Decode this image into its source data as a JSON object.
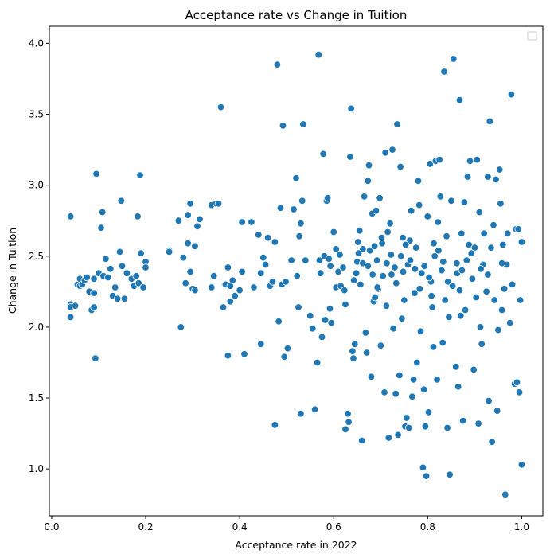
{
  "chart_data": {
    "type": "scatter",
    "title": "Acceptance rate vs Change in Tuition",
    "xlabel": "Acceptance rate in 2022",
    "ylabel": "Change in Tuition",
    "xlim": [
      -0.005,
      1.045
    ],
    "ylim": [
      0.67,
      4.12
    ],
    "xticks": [
      0.0,
      0.2,
      0.4,
      0.6,
      0.8,
      1.0
    ],
    "xtick_labels": [
      "0.0",
      "0.2",
      "0.4",
      "0.6",
      "0.8",
      "1.0"
    ],
    "yticks": [
      1.0,
      1.5,
      2.0,
      2.5,
      3.0,
      3.5,
      4.0
    ],
    "ytick_labels": [
      "1.0",
      "1.5",
      "2.0",
      "2.5",
      "3.0",
      "3.5",
      "4.0"
    ],
    "grid": false,
    "legend": "top-right, empty",
    "marker_color": "#1f77b4",
    "points": [
      [
        0.04,
        2.78
      ],
      [
        0.04,
        2.16
      ],
      [
        0.04,
        2.14
      ],
      [
        0.04,
        2.07
      ],
      [
        0.05,
        2.15
      ],
      [
        0.055,
        2.3
      ],
      [
        0.06,
        2.34
      ],
      [
        0.06,
        2.29
      ],
      [
        0.065,
        2.3
      ],
      [
        0.07,
        2.33
      ],
      [
        0.075,
        2.35
      ],
      [
        0.08,
        2.25
      ],
      [
        0.085,
        2.12
      ],
      [
        0.09,
        2.24
      ],
      [
        0.09,
        2.34
      ],
      [
        0.09,
        2.14
      ],
      [
        0.093,
        1.78
      ],
      [
        0.095,
        3.08
      ],
      [
        0.1,
        2.38
      ],
      [
        0.105,
        2.7
      ],
      [
        0.108,
        2.81
      ],
      [
        0.11,
        2.36
      ],
      [
        0.115,
        2.48
      ],
      [
        0.12,
        2.35
      ],
      [
        0.125,
        2.41
      ],
      [
        0.13,
        2.22
      ],
      [
        0.135,
        2.28
      ],
      [
        0.14,
        2.2
      ],
      [
        0.145,
        2.53
      ],
      [
        0.148,
        2.89
      ],
      [
        0.15,
        2.43
      ],
      [
        0.155,
        2.2
      ],
      [
        0.16,
        2.38
      ],
      [
        0.17,
        2.34
      ],
      [
        0.175,
        2.29
      ],
      [
        0.18,
        2.36
      ],
      [
        0.183,
        2.78
      ],
      [
        0.185,
        2.31
      ],
      [
        0.188,
        3.07
      ],
      [
        0.19,
        2.52
      ],
      [
        0.195,
        2.28
      ],
      [
        0.2,
        2.46
      ],
      [
        0.2,
        2.42
      ],
      [
        0.25,
        2.54
      ],
      [
        0.25,
        2.53
      ],
      [
        0.27,
        2.75
      ],
      [
        0.275,
        2.0
      ],
      [
        0.28,
        2.49
      ],
      [
        0.285,
        2.31
      ],
      [
        0.29,
        2.59
      ],
      [
        0.29,
        2.79
      ],
      [
        0.295,
        2.87
      ],
      [
        0.295,
        2.39
      ],
      [
        0.3,
        2.27
      ],
      [
        0.305,
        2.26
      ],
      [
        0.305,
        2.57
      ],
      [
        0.31,
        2.71
      ],
      [
        0.315,
        2.76
      ],
      [
        0.34,
        2.86
      ],
      [
        0.34,
        2.28
      ],
      [
        0.345,
        2.36
      ],
      [
        0.35,
        2.87
      ],
      [
        0.355,
        2.87
      ],
      [
        0.36,
        3.55
      ],
      [
        0.365,
        2.14
      ],
      [
        0.37,
        2.3
      ],
      [
        0.375,
        1.8
      ],
      [
        0.375,
        2.42
      ],
      [
        0.38,
        2.29
      ],
      [
        0.38,
        2.18
      ],
      [
        0.385,
        2.33
      ],
      [
        0.39,
        2.22
      ],
      [
        0.4,
        2.26
      ],
      [
        0.405,
        2.74
      ],
      [
        0.405,
        2.39
      ],
      [
        0.41,
        1.81
      ],
      [
        0.425,
        2.74
      ],
      [
        0.43,
        2.28
      ],
      [
        0.44,
        2.65
      ],
      [
        0.445,
        2.38
      ],
      [
        0.445,
        1.88
      ],
      [
        0.45,
        2.49
      ],
      [
        0.455,
        2.44
      ],
      [
        0.46,
        2.63
      ],
      [
        0.465,
        2.29
      ],
      [
        0.47,
        2.32
      ],
      [
        0.475,
        2.6
      ],
      [
        0.475,
        1.31
      ],
      [
        0.48,
        3.85
      ],
      [
        0.483,
        2.04
      ],
      [
        0.487,
        2.84
      ],
      [
        0.49,
        2.3
      ],
      [
        0.492,
        3.42
      ],
      [
        0.495,
        1.79
      ],
      [
        0.498,
        2.32
      ],
      [
        0.502,
        1.85
      ],
      [
        0.51,
        2.47
      ],
      [
        0.515,
        2.83
      ],
      [
        0.52,
        3.05
      ],
      [
        0.522,
        2.36
      ],
      [
        0.525,
        2.14
      ],
      [
        0.527,
        2.64
      ],
      [
        0.53,
        2.73
      ],
      [
        0.53,
        1.39
      ],
      [
        0.533,
        2.89
      ],
      [
        0.535,
        3.43
      ],
      [
        0.54,
        2.47
      ],
      [
        0.55,
        2.08
      ],
      [
        0.555,
        1.99
      ],
      [
        0.56,
        1.42
      ],
      [
        0.565,
        1.75
      ],
      [
        0.568,
        3.92
      ],
      [
        0.57,
        2.47
      ],
      [
        0.572,
        2.38
      ],
      [
        0.575,
        1.93
      ],
      [
        0.578,
        3.22
      ],
      [
        0.58,
        2.5
      ],
      [
        0.582,
        2.05
      ],
      [
        0.585,
        2.89
      ],
      [
        0.587,
        2.91
      ],
      [
        0.59,
        2.48
      ],
      [
        0.592,
        2.13
      ],
      [
        0.595,
        2.03
      ],
      [
        0.6,
        2.67
      ],
      [
        0.605,
        2.55
      ],
      [
        0.605,
        2.28
      ],
      [
        0.61,
        2.39
      ],
      [
        0.615,
        2.29
      ],
      [
        0.62,
        2.42
      ],
      [
        0.625,
        2.16
      ],
      [
        0.625,
        1.28
      ],
      [
        0.63,
        1.39
      ],
      [
        0.632,
        1.33
      ],
      [
        0.635,
        3.2
      ],
      [
        0.637,
        3.54
      ],
      [
        0.64,
        1.83
      ],
      [
        0.642,
        1.78
      ],
      [
        0.645,
        1.88
      ],
      [
        0.648,
        2.38
      ],
      [
        0.65,
        2.46
      ],
      [
        0.652,
        2.6
      ],
      [
        0.655,
        2.68
      ],
      [
        0.657,
        2.3
      ],
      [
        0.66,
        1.2
      ],
      [
        0.662,
        2.45
      ],
      [
        0.665,
        2.92
      ],
      [
        0.668,
        1.96
      ],
      [
        0.67,
        1.82
      ],
      [
        0.673,
        3.03
      ],
      [
        0.675,
        3.14
      ],
      [
        0.677,
        2.54
      ],
      [
        0.68,
        1.65
      ],
      [
        0.682,
        2.8
      ],
      [
        0.685,
        2.18
      ],
      [
        0.687,
        2.57
      ],
      [
        0.69,
        2.82
      ],
      [
        0.692,
        2.47
      ],
      [
        0.695,
        2.27
      ],
      [
        0.698,
        2.91
      ],
      [
        0.7,
        1.87
      ],
      [
        0.702,
        2.63
      ],
      [
        0.705,
        2.36
      ],
      [
        0.708,
        1.54
      ],
      [
        0.71,
        3.23
      ],
      [
        0.712,
        2.15
      ],
      [
        0.715,
        2.67
      ],
      [
        0.717,
        1.22
      ],
      [
        0.72,
        2.73
      ],
      [
        0.722,
        2.51
      ],
      [
        0.725,
        3.25
      ],
      [
        0.727,
        1.99
      ],
      [
        0.73,
        2.42
      ],
      [
        0.732,
        1.53
      ],
      [
        0.735,
        3.43
      ],
      [
        0.737,
        1.24
      ],
      [
        0.74,
        1.66
      ],
      [
        0.742,
        3.13
      ],
      [
        0.745,
        2.06
      ],
      [
        0.747,
        2.63
      ],
      [
        0.75,
        2.19
      ],
      [
        0.752,
        1.3
      ],
      [
        0.755,
        1.36
      ],
      [
        0.758,
        2.44
      ],
      [
        0.76,
        1.29
      ],
      [
        0.762,
        2.61
      ],
      [
        0.765,
        2.82
      ],
      [
        0.767,
        1.51
      ],
      [
        0.77,
        1.63
      ],
      [
        0.772,
        2.24
      ],
      [
        0.775,
        2.56
      ],
      [
        0.777,
        1.75
      ],
      [
        0.78,
        3.03
      ],
      [
        0.782,
        2.86
      ],
      [
        0.785,
        1.97
      ],
      [
        0.787,
        2.38
      ],
      [
        0.79,
        1.01
      ],
      [
        0.792,
        1.56
      ],
      [
        0.795,
        1.3
      ],
      [
        0.797,
        0.95
      ],
      [
        0.8,
        2.78
      ],
      [
        0.802,
        1.4
      ],
      [
        0.805,
        3.15
      ],
      [
        0.807,
        2.32
      ],
      [
        0.81,
        2.14
      ],
      [
        0.812,
        1.86
      ],
      [
        0.815,
        2.5
      ],
      [
        0.817,
        3.17
      ],
      [
        0.82,
        1.63
      ],
      [
        0.822,
        2.74
      ],
      [
        0.825,
        3.18
      ],
      [
        0.827,
        2.92
      ],
      [
        0.83,
        2.4
      ],
      [
        0.832,
        1.89
      ],
      [
        0.835,
        3.8
      ],
      [
        0.837,
        2.19
      ],
      [
        0.84,
        2.64
      ],
      [
        0.842,
        1.29
      ],
      [
        0.845,
        2.07
      ],
      [
        0.847,
        0.96
      ],
      [
        0.85,
        2.89
      ],
      [
        0.855,
        3.89
      ],
      [
        0.86,
        1.72
      ],
      [
        0.862,
        2.45
      ],
      [
        0.865,
        1.58
      ],
      [
        0.868,
        3.6
      ],
      [
        0.87,
        2.08
      ],
      [
        0.872,
        2.66
      ],
      [
        0.875,
        1.34
      ],
      [
        0.878,
        2.88
      ],
      [
        0.88,
        2.12
      ],
      [
        0.885,
        3.06
      ],
      [
        0.888,
        2.58
      ],
      [
        0.89,
        3.17
      ],
      [
        0.895,
        2.34
      ],
      [
        0.898,
        1.7
      ],
      [
        0.9,
        2.56
      ],
      [
        0.905,
        3.18
      ],
      [
        0.908,
        1.32
      ],
      [
        0.91,
        2.81
      ],
      [
        0.912,
        2.0
      ],
      [
        0.915,
        1.88
      ],
      [
        0.918,
        2.44
      ],
      [
        0.92,
        2.66
      ],
      [
        0.925,
        2.25
      ],
      [
        0.928,
        3.06
      ],
      [
        0.93,
        1.48
      ],
      [
        0.932,
        3.45
      ],
      [
        0.935,
        2.56
      ],
      [
        0.937,
        1.19
      ],
      [
        0.94,
        2.72
      ],
      [
        0.942,
        2.19
      ],
      [
        0.945,
        3.04
      ],
      [
        0.948,
        1.41
      ],
      [
        0.95,
        1.98
      ],
      [
        0.953,
        3.11
      ],
      [
        0.955,
        2.87
      ],
      [
        0.958,
        2.12
      ],
      [
        0.96,
        2.58
      ],
      [
        0.963,
        2.27
      ],
      [
        0.965,
        0.82
      ],
      [
        0.968,
        2.44
      ],
      [
        0.97,
        2.66
      ],
      [
        0.975,
        2.03
      ],
      [
        0.978,
        3.64
      ],
      [
        0.98,
        2.3
      ],
      [
        0.985,
        1.6
      ],
      [
        0.988,
        2.69
      ],
      [
        0.99,
        1.61
      ],
      [
        0.993,
        2.69
      ],
      [
        0.995,
        1.54
      ],
      [
        0.997,
        2.19
      ],
      [
        1.0,
        1.03
      ],
      [
        1.0,
        2.6
      ],
      [
        0.662,
        2.55
      ],
      [
        0.693,
        2.28
      ],
      [
        0.743,
        2.5
      ],
      [
        0.773,
        2.41
      ],
      [
        0.803,
        2.35
      ],
      [
        0.833,
        2.46
      ],
      [
        0.863,
        2.38
      ],
      [
        0.893,
        2.52
      ],
      [
        0.723,
        2.37
      ],
      [
        0.753,
        2.58
      ],
      [
        0.783,
        2.27
      ],
      [
        0.813,
        2.59
      ],
      [
        0.843,
        2.32
      ],
      [
        0.873,
        2.4
      ],
      [
        0.903,
        2.21
      ],
      [
        0.713,
        2.45
      ],
      [
        0.733,
        2.31
      ],
      [
        0.763,
        2.47
      ],
      [
        0.793,
        2.43
      ],
      [
        0.823,
        2.54
      ],
      [
        0.853,
        2.29
      ],
      [
        0.883,
        2.47
      ],
      [
        0.913,
        2.41
      ],
      [
        0.613,
        2.51
      ],
      [
        0.643,
        2.33
      ],
      [
        0.673,
        2.43
      ],
      [
        0.703,
        2.59
      ],
      [
        0.688,
        2.21
      ],
      [
        0.748,
        2.39
      ],
      [
        0.808,
        2.22
      ],
      [
        0.868,
        2.26
      ],
      [
        0.928,
        2.37
      ],
      [
        0.958,
        2.45
      ],
      [
        0.593,
        2.43
      ],
      [
        0.623,
        2.26
      ],
      [
        0.653,
        2.52
      ],
      [
        0.683,
        2.37
      ]
    ]
  }
}
